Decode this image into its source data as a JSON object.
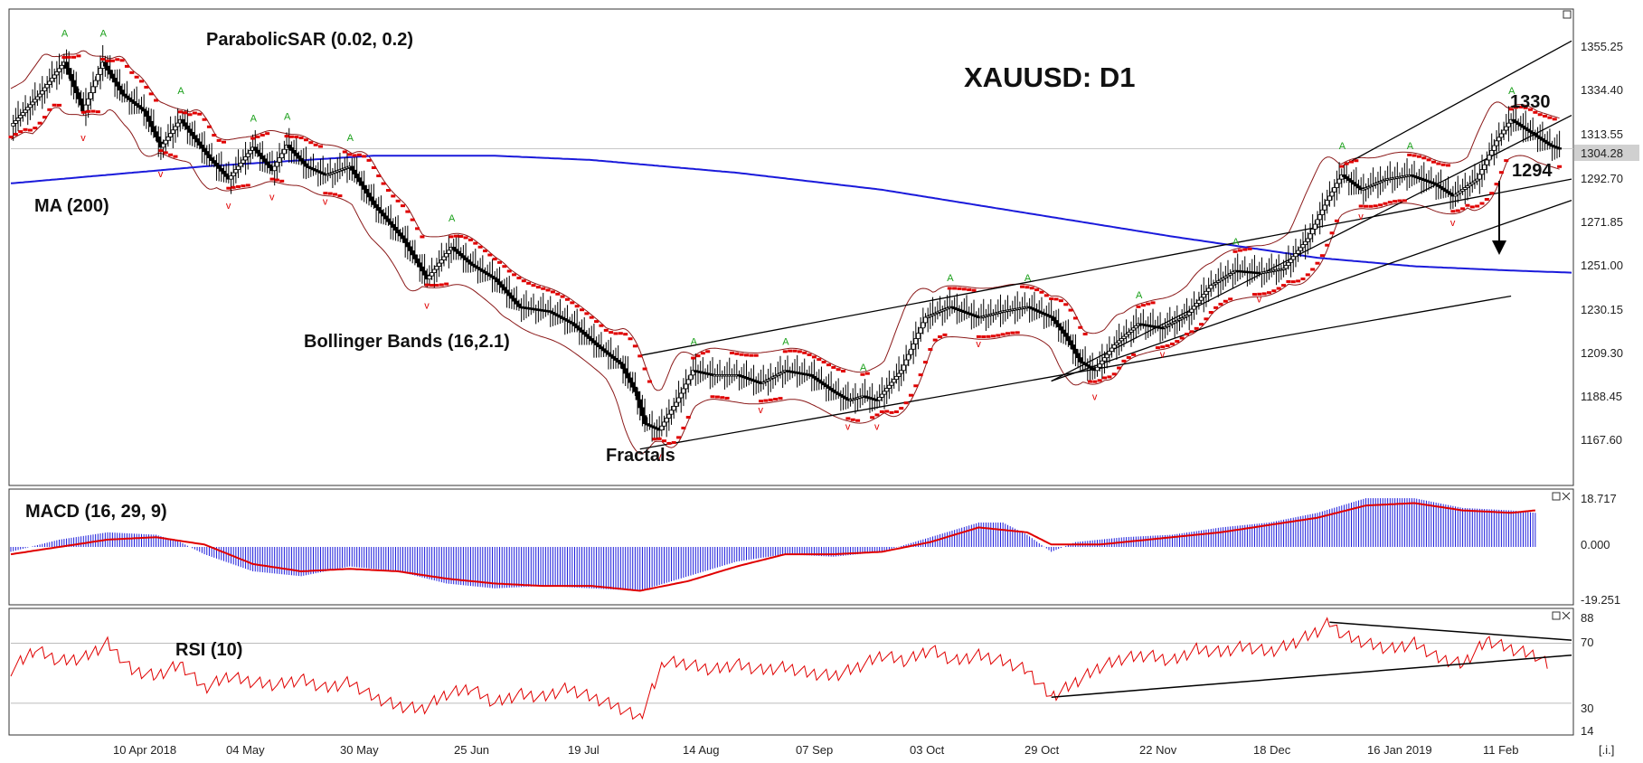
{
  "chart_data": {
    "type": "candlestick",
    "title": "XAUUSD: D1",
    "dates": [
      "10 Apr 2018",
      "04 May",
      "30 May",
      "25 Jun",
      "19 Jul",
      "14 Aug",
      "07 Sep",
      "03 Oct",
      "29 Oct",
      "22 Nov",
      "18 Dec",
      "16 Jan 2019",
      "11 Feb"
    ],
    "price_panel": {
      "yticks": [
        "1355.25",
        "1334.40",
        "1313.55",
        "1292.70",
        "1271.85",
        "1251.00",
        "1230.15",
        "1209.30",
        "1188.45",
        "1167.60"
      ],
      "ylim": [
        1146.75,
        1369.15
      ],
      "last_price": "1304.28",
      "indicators": [
        "ParabolicSAR (0.02, 0.2)",
        "MA (200)",
        "Bollinger Bands (16,2.1)",
        "Fractals"
      ],
      "price_path": [
        [
          0,
          1315
        ],
        [
          12,
          1330
        ],
        [
          22,
          1345
        ],
        [
          30,
          1322
        ],
        [
          38,
          1345
        ],
        [
          46,
          1330
        ],
        [
          55,
          1322
        ],
        [
          62,
          1305
        ],
        [
          70,
          1318
        ],
        [
          82,
          1300
        ],
        [
          90,
          1290
        ],
        [
          100,
          1305
        ],
        [
          108,
          1294
        ],
        [
          114,
          1306
        ],
        [
          122,
          1296
        ],
        [
          130,
          1292
        ],
        [
          140,
          1296
        ],
        [
          150,
          1278
        ],
        [
          162,
          1262
        ],
        [
          172,
          1243
        ],
        [
          182,
          1258
        ],
        [
          190,
          1250
        ],
        [
          200,
          1243
        ],
        [
          210,
          1230
        ],
        [
          222,
          1228
        ],
        [
          232,
          1222
        ],
        [
          242,
          1212
        ],
        [
          252,
          1203
        ],
        [
          258,
          1190
        ],
        [
          262,
          1175
        ],
        [
          268,
          1172
        ],
        [
          275,
          1185
        ],
        [
          282,
          1200
        ],
        [
          290,
          1198
        ],
        [
          300,
          1198
        ],
        [
          310,
          1194
        ],
        [
          320,
          1200
        ],
        [
          330,
          1198
        ],
        [
          340,
          1190
        ],
        [
          346,
          1186
        ],
        [
          352,
          1188
        ],
        [
          358,
          1186
        ],
        [
          368,
          1200
        ],
        [
          378,
          1225
        ],
        [
          388,
          1230
        ],
        [
          400,
          1225
        ],
        [
          410,
          1228
        ],
        [
          420,
          1230
        ],
        [
          430,
          1225
        ],
        [
          436,
          1216
        ],
        [
          442,
          1204
        ],
        [
          448,
          1200
        ],
        [
          456,
          1212
        ],
        [
          466,
          1222
        ],
        [
          476,
          1220
        ],
        [
          486,
          1226
        ],
        [
          496,
          1240
        ],
        [
          506,
          1247
        ],
        [
          516,
          1246
        ],
        [
          526,
          1248
        ],
        [
          536,
          1262
        ],
        [
          544,
          1280
        ],
        [
          550,
          1292
        ],
        [
          558,
          1285
        ],
        [
          568,
          1290
        ],
        [
          578,
          1292
        ],
        [
          588,
          1288
        ],
        [
          596,
          1282
        ],
        [
          606,
          1290
        ],
        [
          614,
          1308
        ],
        [
          620,
          1318
        ],
        [
          628,
          1312
        ],
        [
          636,
          1306
        ],
        [
          640,
          1304.28
        ]
      ],
      "ma200": [
        [
          0,
          1288
        ],
        [
          80,
          1296
        ],
        [
          150,
          1301
        ],
        [
          200,
          1301
        ],
        [
          240,
          1299
        ],
        [
          300,
          1293
        ],
        [
          360,
          1285
        ],
        [
          420,
          1274
        ],
        [
          480,
          1263
        ],
        [
          540,
          1253
        ],
        [
          580,
          1249
        ],
        [
          620,
          1247
        ],
        [
          645,
          1246
        ]
      ],
      "lines": [
        {
          "from": [
            260,
            1163
          ],
          "to": [
            620,
            1235
          ]
        },
        {
          "from": [
            260,
            1207
          ],
          "to": [
            645,
            1290
          ]
        },
        {
          "from": [
            430,
            1195
          ],
          "to": [
            645,
            1280
          ]
        },
        {
          "from": [
            550,
            1296
          ],
          "to": [
            645,
            1355
          ]
        },
        {
          "from": [
            430,
            1195
          ],
          "to": [
            645,
            1320
          ]
        }
      ],
      "levels": [
        {
          "label": "1330",
          "value": 1330
        },
        {
          "label": "1294",
          "value": 1294
        }
      ]
    },
    "macd_panel": {
      "label": "MACD (16, 29, 9)",
      "yticks": [
        "18.717",
        "0.000",
        "-19.251"
      ],
      "ylim": [
        -23,
        23
      ],
      "histogram": [
        [
          0,
          -2
        ],
        [
          20,
          3
        ],
        [
          40,
          6
        ],
        [
          60,
          5
        ],
        [
          70,
          2
        ],
        [
          80,
          -3
        ],
        [
          100,
          -10
        ],
        [
          120,
          -12
        ],
        [
          140,
          -8
        ],
        [
          160,
          -10
        ],
        [
          180,
          -15
        ],
        [
          200,
          -17
        ],
        [
          220,
          -16
        ],
        [
          240,
          -17
        ],
        [
          260,
          -18
        ],
        [
          280,
          -12
        ],
        [
          300,
          -6
        ],
        [
          320,
          -3
        ],
        [
          340,
          -4
        ],
        [
          360,
          -2
        ],
        [
          380,
          4
        ],
        [
          400,
          10
        ],
        [
          410,
          10
        ],
        [
          420,
          5
        ],
        [
          430,
          -2
        ],
        [
          440,
          2
        ],
        [
          460,
          4
        ],
        [
          480,
          5
        ],
        [
          500,
          8
        ],
        [
          520,
          10
        ],
        [
          540,
          14
        ],
        [
          560,
          20
        ],
        [
          580,
          20
        ],
        [
          600,
          16
        ],
        [
          620,
          15
        ],
        [
          630,
          14
        ]
      ],
      "signal": [
        [
          0,
          -3
        ],
        [
          20,
          0
        ],
        [
          40,
          3
        ],
        [
          60,
          4
        ],
        [
          80,
          1
        ],
        [
          100,
          -7
        ],
        [
          120,
          -10
        ],
        [
          140,
          -9
        ],
        [
          160,
          -10
        ],
        [
          180,
          -13
        ],
        [
          200,
          -15
        ],
        [
          220,
          -16
        ],
        [
          240,
          -16
        ],
        [
          260,
          -18
        ],
        [
          280,
          -14
        ],
        [
          300,
          -8
        ],
        [
          320,
          -3
        ],
        [
          340,
          -3
        ],
        [
          360,
          -2
        ],
        [
          380,
          2
        ],
        [
          400,
          8
        ],
        [
          420,
          6
        ],
        [
          430,
          1
        ],
        [
          450,
          1
        ],
        [
          480,
          4
        ],
        [
          500,
          6
        ],
        [
          520,
          9
        ],
        [
          540,
          12
        ],
        [
          560,
          17
        ],
        [
          580,
          18
        ],
        [
          600,
          15
        ],
        [
          620,
          14
        ],
        [
          630,
          15
        ]
      ]
    },
    "rsi_panel": {
      "label": "RSI (10)",
      "yticks": [
        "88",
        "70",
        "30",
        "14"
      ],
      "ylim": [
        10,
        92
      ],
      "levels": [
        70,
        30
      ],
      "values": [
        [
          0,
          52
        ],
        [
          10,
          66
        ],
        [
          20,
          58
        ],
        [
          30,
          60
        ],
        [
          40,
          70
        ],
        [
          50,
          52
        ],
        [
          60,
          48
        ],
        [
          70,
          56
        ],
        [
          80,
          40
        ],
        [
          90,
          48
        ],
        [
          100,
          44
        ],
        [
          110,
          42
        ],
        [
          120,
          46
        ],
        [
          130,
          40
        ],
        [
          140,
          44
        ],
        [
          150,
          34
        ],
        [
          160,
          28
        ],
        [
          170,
          26
        ],
        [
          180,
          36
        ],
        [
          190,
          40
        ],
        [
          200,
          30
        ],
        [
          210,
          36
        ],
        [
          220,
          34
        ],
        [
          230,
          40
        ],
        [
          240,
          34
        ],
        [
          250,
          28
        ],
        [
          260,
          20
        ],
        [
          270,
          58
        ],
        [
          280,
          56
        ],
        [
          290,
          52
        ],
        [
          300,
          56
        ],
        [
          310,
          52
        ],
        [
          320,
          54
        ],
        [
          330,
          50
        ],
        [
          340,
          48
        ],
        [
          350,
          54
        ],
        [
          360,
          62
        ],
        [
          370,
          58
        ],
        [
          380,
          66
        ],
        [
          390,
          58
        ],
        [
          400,
          62
        ],
        [
          410,
          58
        ],
        [
          420,
          52
        ],
        [
          430,
          34
        ],
        [
          440,
          44
        ],
        [
          450,
          54
        ],
        [
          460,
          60
        ],
        [
          470,
          62
        ],
        [
          480,
          58
        ],
        [
          490,
          66
        ],
        [
          500,
          64
        ],
        [
          510,
          68
        ],
        [
          520,
          64
        ],
        [
          530,
          70
        ],
        [
          540,
          78
        ],
        [
          545,
          84
        ],
        [
          550,
          76
        ],
        [
          560,
          70
        ],
        [
          570,
          66
        ],
        [
          580,
          70
        ],
        [
          590,
          60
        ],
        [
          600,
          56
        ],
        [
          610,
          72
        ],
        [
          620,
          66
        ],
        [
          630,
          62
        ],
        [
          635,
          56
        ]
      ],
      "lines": [
        {
          "from": [
            545,
            84
          ],
          "to": [
            645,
            72
          ]
        },
        {
          "from": [
            430,
            34
          ],
          "to": [
            645,
            62
          ]
        }
      ]
    }
  },
  "controls": {
    "corner_label": "[.i.]"
  }
}
